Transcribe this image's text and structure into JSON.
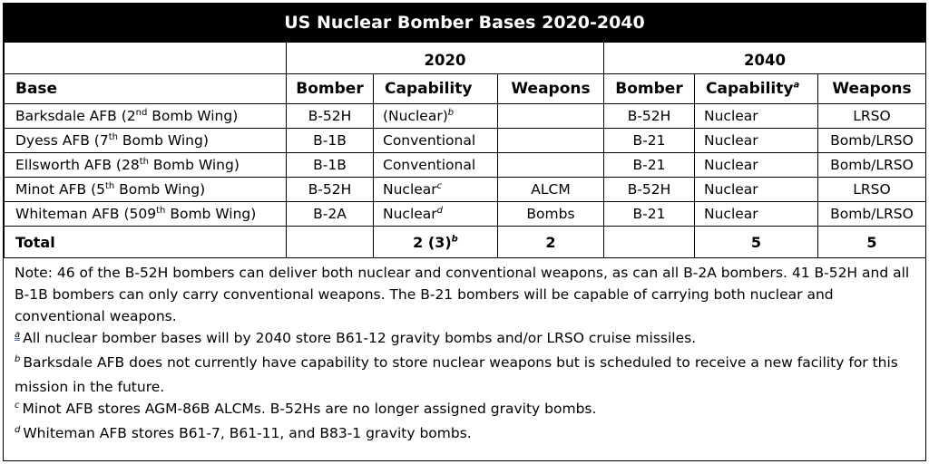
{
  "title": "US Nuclear Bomber Bases 2020-2040",
  "years": [
    "2020",
    "2040"
  ],
  "headers": {
    "base": "Base",
    "bomber_2020": "Bomber",
    "capability_2020": "Capability",
    "weapons_2020": "Weapons",
    "bomber_2040": "Bomber",
    "capability_2040": "Capability",
    "capability_2040_sup": "a",
    "weapons_2040": "Weapons"
  },
  "rows": [
    {
      "base_pre": "Barksdale AFB (2",
      "base_sup": "nd",
      "base_post": " Bomb Wing)",
      "bomber_2020": "B-52H",
      "capability_2020": "(Nuclear)",
      "capability_2020_sup": "b",
      "weapons_2020": "",
      "bomber_2040": "B-52H",
      "capability_2040": "Nuclear",
      "weapons_2040": "LRSO"
    },
    {
      "base_pre": "Dyess AFB (7",
      "base_sup": "th",
      "base_post": " Bomb Wing)",
      "bomber_2020": "B-1B",
      "capability_2020": "Conventional",
      "capability_2020_sup": "",
      "weapons_2020": "",
      "bomber_2040": "B-21",
      "capability_2040": "Nuclear",
      "weapons_2040": "Bomb/LRSO"
    },
    {
      "base_pre": "Ellsworth AFB (28",
      "base_sup": "th",
      "base_post": " Bomb Wing)",
      "bomber_2020": "B-1B",
      "capability_2020": "Conventional",
      "capability_2020_sup": "",
      "weapons_2020": "",
      "bomber_2040": "B-21",
      "capability_2040": "Nuclear",
      "weapons_2040": "Bomb/LRSO"
    },
    {
      "base_pre": "Minot AFB (5",
      "base_sup": "th",
      "base_post": " Bomb Wing)",
      "bomber_2020": "B-52H",
      "capability_2020": "Nuclear",
      "capability_2020_sup": "c",
      "weapons_2020": "ALCM",
      "bomber_2040": "B-52H",
      "capability_2040": "Nuclear",
      "weapons_2040": "LRSO"
    },
    {
      "base_pre": "Whiteman AFB (509",
      "base_sup": "th",
      "base_post": " Bomb Wing)",
      "bomber_2020": "B-2A",
      "capability_2020": "Nuclear",
      "capability_2020_sup": "d",
      "weapons_2020": "Bombs",
      "bomber_2040": "B-21",
      "capability_2040": "Nuclear",
      "weapons_2040": "Bomb/LRSO"
    }
  ],
  "total": {
    "label": "Total",
    "capability_2020": "2 (3)",
    "capability_2020_sup": "b",
    "weapons_2020": "2",
    "capability_2040": "5",
    "weapons_2040": "5"
  },
  "notes": {
    "main": "Note: 46 of the B-52H bombers can deliver both nuclear and conventional weapons, as can all B-2A bombers. 41 B-52H and all B-1B bombers can only carry conventional weapons. The B-21 bombers will be capable of carrying both nuclear and conventional weapons.",
    "footnotes": [
      {
        "mark": "a",
        "text": "All nuclear bomber bases will by 2040 store B61-12 gravity bombs and/or LRSO cruise missiles."
      },
      {
        "mark": "b",
        "text": "Barksdale AFB does not currently have capability to store nuclear weapons but is scheduled to receive a new facility for this mission in the future."
      },
      {
        "mark": "c",
        "text": "Minot AFB stores AGM-86B ALCMs. B-52Hs are no longer assigned gravity bombs."
      },
      {
        "mark": "d",
        "text": "Whiteman AFB stores B61-7, B61-11, and B83-1 gravity bombs."
      }
    ]
  }
}
